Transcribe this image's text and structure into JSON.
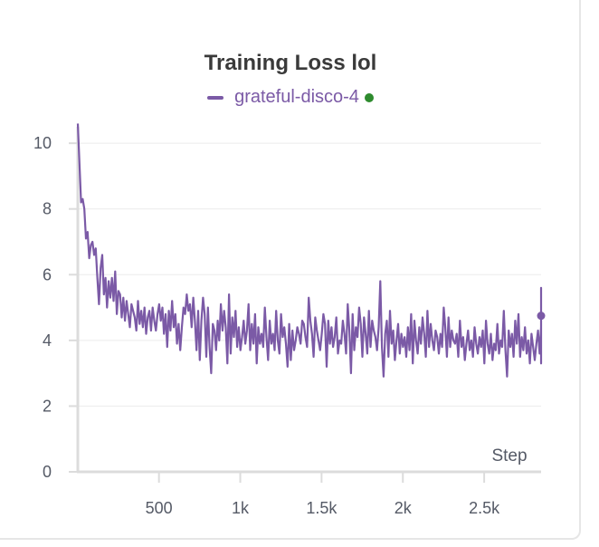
{
  "chart_data": {
    "type": "line",
    "title": "Training Loss lol",
    "xlabel": "Step",
    "ylabel": "",
    "xlim": [
      1,
      2850
    ],
    "ylim": [
      0,
      10.5
    ],
    "x_ticks": [
      500,
      1000,
      1500,
      2000,
      2500
    ],
    "x_tick_labels": [
      "500",
      "1k",
      "1.5k",
      "2k",
      "2.5k"
    ],
    "y_ticks": [
      0,
      2,
      4,
      6,
      8,
      10
    ],
    "y_tick_labels": [
      "0",
      "2",
      "4",
      "6",
      "8",
      "10"
    ],
    "grid": true,
    "legend_position": "top-center",
    "series": [
      {
        "name": "grateful-disco-4",
        "color": "#7b5aa6",
        "status_color": "#2e8b2e",
        "x_step": 10,
        "x_start": 1,
        "values": [
          10.6,
          9.4,
          8.2,
          8.3,
          8.0,
          7.1,
          7.3,
          6.5,
          6.9,
          7.0,
          6.6,
          6.8,
          5.9,
          5.1,
          6.2,
          6.6,
          5.4,
          5.9,
          5.0,
          5.8,
          5.3,
          5.9,
          5.2,
          6.1,
          4.8,
          5.5,
          5.4,
          4.7,
          5.3,
          4.6,
          5.2,
          4.8,
          4.4,
          5.1,
          4.9,
          4.7,
          4.3,
          5.2,
          4.5,
          4.9,
          4.4,
          5.0,
          4.2,
          4.7,
          4.9,
          4.3,
          5.0,
          4.6,
          4.3,
          4.8,
          5.1,
          4.6,
          5.0,
          4.2,
          4.8,
          3.8,
          4.9,
          4.3,
          5.2,
          4.4,
          4.8,
          3.9,
          4.5,
          3.7,
          4.4,
          5.0,
          4.8,
          5.4,
          4.9,
          5.1,
          4.4,
          5.3,
          4.6,
          3.7,
          4.9,
          3.4,
          4.6,
          5.3,
          4.8,
          3.5,
          5.0,
          3.8,
          3.0,
          4.5,
          4.3,
          3.7,
          4.6,
          4.0,
          5.1,
          4.3,
          4.9,
          4.4,
          3.3,
          5.4,
          3.6,
          4.7,
          4.1,
          4.9,
          3.8,
          4.4,
          3.7,
          4.1,
          4.6,
          3.9,
          4.3,
          5.1,
          3.7,
          4.5,
          3.9,
          4.8,
          3.3,
          4.4,
          3.9,
          4.2,
          3.8,
          5.0,
          4.1,
          3.4,
          4.6,
          3.9,
          4.2,
          3.7,
          4.9,
          4.0,
          3.6,
          4.8,
          4.1,
          4.4,
          3.9,
          3.2,
          4.5,
          3.4,
          4.3,
          3.7,
          4.0,
          4.4,
          4.2,
          3.9,
          4.6,
          4.5,
          4.1,
          3.8,
          5.3,
          4.6,
          4.2,
          3.5,
          4.7,
          4.3,
          4.0,
          3.7,
          4.2,
          4.8,
          4.5,
          3.2,
          4.6,
          3.9,
          4.4,
          3.8,
          4.1,
          4.7,
          3.6,
          4.0,
          3.9,
          4.6,
          4.2,
          3.6,
          5.1,
          4.3,
          3.0,
          4.8,
          3.7,
          4.4,
          4.1,
          5.0,
          4.5,
          3.5,
          4.7,
          4.2,
          3.6,
          4.9,
          3.8,
          4.6,
          4.3,
          4.1,
          3.7,
          4.4,
          5.8,
          3.8,
          2.9,
          4.2,
          4.6,
          3.5,
          4.9,
          3.9,
          4.3,
          3.4,
          4.0,
          4.5,
          3.6,
          4.2,
          3.8,
          4.1,
          3.5,
          4.4,
          3.7,
          4.8,
          3.3,
          4.6,
          4.0,
          3.6,
          4.4,
          3.9,
          4.7,
          4.2,
          3.5,
          4.9,
          3.8,
          4.5,
          4.0,
          3.7,
          4.3,
          4.1,
          3.6,
          4.2,
          3.8,
          5.0,
          4.4,
          3.5,
          4.7,
          3.8,
          4.3,
          4.0,
          3.9,
          4.2,
          3.5,
          4.6,
          3.8,
          4.1,
          3.4,
          3.9,
          4.3,
          3.7,
          4.0,
          3.5,
          4.4,
          3.9,
          3.6,
          4.1,
          3.8,
          4.3,
          3.3,
          4.6,
          3.9,
          3.6,
          4.2,
          3.4,
          3.9,
          3.7,
          4.5,
          3.6,
          4.0,
          3.8,
          4.9,
          3.7,
          2.9,
          4.3,
          3.8,
          4.2,
          3.5,
          4.6,
          3.9,
          4.8,
          3.5,
          4.1,
          3.7,
          4.4,
          3.6,
          4.0,
          3.3,
          4.2,
          3.8,
          3.4,
          3.9,
          4.3,
          3.6,
          4.4,
          3.8,
          5.6,
          3.9,
          4.2,
          3.5,
          4.5,
          3.7,
          4.1,
          3.6,
          3.9,
          3.3,
          4.1,
          4.75
        ]
      }
    ]
  }
}
